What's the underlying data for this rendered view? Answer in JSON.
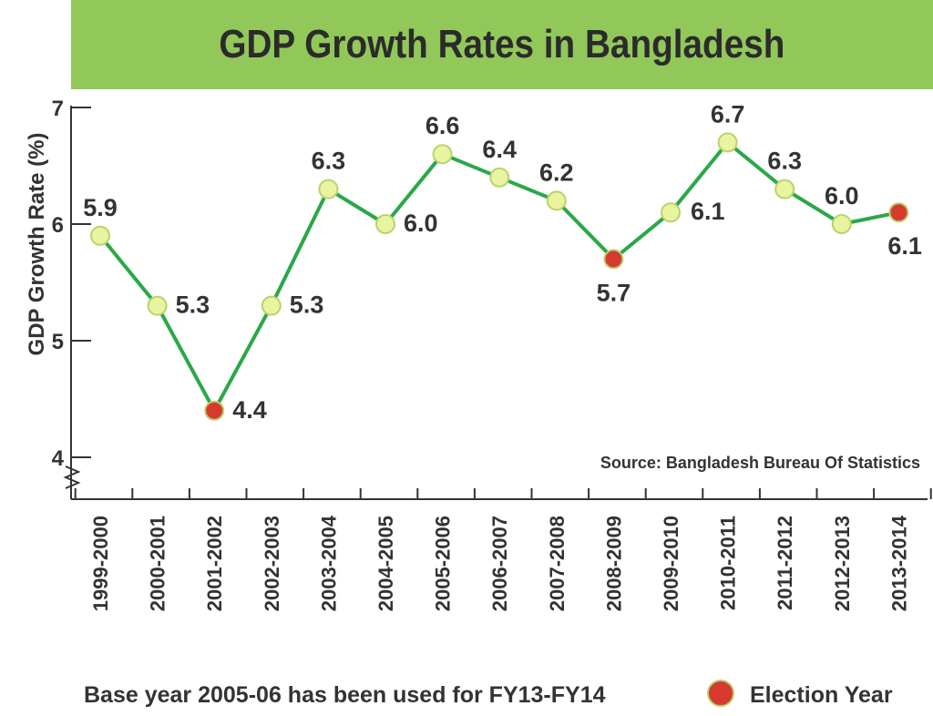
{
  "chart_data": {
    "type": "line",
    "title": "GDP Growth Rates in Bangladesh",
    "ylabel": "GDP Growth Rate (%)",
    "ylim": [
      4,
      7
    ],
    "yticks": [
      4,
      5,
      6,
      7
    ],
    "categories": [
      "1999-2000",
      "2000-2001",
      "2001-2002",
      "2002-2003",
      "2003-2004",
      "2004-2005",
      "2005-2006",
      "2006-2007",
      "2007-2008",
      "2008-2009",
      "2009-2010",
      "2010-2011",
      "2011-2012",
      "2012-2013",
      "2013-2014"
    ],
    "series": [
      {
        "values": [
          5.9,
          5.3,
          4.4,
          5.3,
          6.3,
          6.0,
          6.6,
          6.4,
          6.2,
          5.7,
          6.1,
          6.7,
          6.3,
          6.0,
          6.1
        ]
      }
    ],
    "value_labels": [
      "5.9",
      "5.3",
      "4.4",
      "5.3",
      "6.3",
      "6.0",
      "6.6",
      "6.4",
      "6.2",
      "5.7",
      "6.1",
      "6.7",
      "6.3",
      "6.0",
      "6.1"
    ],
    "election_years": [
      "2001-2002",
      "2008-2009",
      "2013-2014"
    ],
    "source": "Source: Bangladesh Bureau Of Statistics",
    "footnote": "Base year 2005-06 has been used for FY13-FY14",
    "legend": {
      "label": "Election Year",
      "placement": "bottom-right"
    },
    "colors": {
      "line": "#2aa848",
      "point_fill": "#eaf3a0",
      "point_stroke": "#b7d46a",
      "election_point": "#d63a2f",
      "election_label": "#c8352b",
      "banner": "#92c85a"
    }
  }
}
